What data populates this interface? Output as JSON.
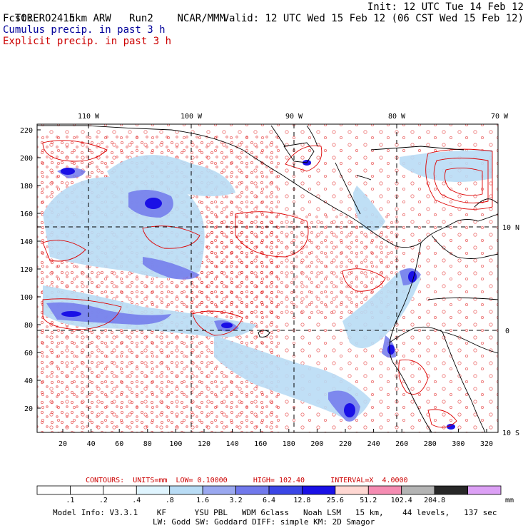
{
  "header": {
    "model": "TORERO",
    "grid": "15km ARW",
    "run": "Run2",
    "org": "NCAR/MMM",
    "init": "Init: 12 UTC Tue 14 Feb 12",
    "fcst_label": "Fcst:",
    "fcst_hours": "24 h",
    "valid": "Valid: 12 UTC Wed 15 Feb 12 (06 CST Wed 15 Feb 12)",
    "field1": "Cumulus precip. in past 3 h",
    "field2": "Explicit precip. in past 3 h",
    "field1_color": "#000099",
    "field2_color": "#cc0000"
  },
  "map": {
    "lon_labels": [
      "110 W",
      "100 W",
      "90 W",
      "80 W",
      "70 W"
    ],
    "lat_labels": [
      "10 N",
      "0",
      "10 S"
    ],
    "y_ticks": [
      "220",
      "200",
      "180",
      "160",
      "140",
      "120",
      "100",
      "80",
      "60",
      "40",
      "20"
    ],
    "x_ticks": [
      "20",
      "40",
      "60",
      "80",
      "100",
      "120",
      "140",
      "160",
      "180",
      "200",
      "220",
      "240",
      "260",
      "280",
      "300",
      "320"
    ]
  },
  "contours": {
    "label": "CONTOURS:",
    "units": "UNITS=mm",
    "low": "LOW= 0.10000",
    "high": "HIGH= 102.40",
    "interval": "INTERVAL=X  4.0000"
  },
  "colorbar": {
    "labels": [
      ".1",
      ".2",
      ".4",
      ".8",
      "1.6",
      "3.2",
      "6.4",
      "12.8",
      "25.6",
      "51.2",
      "102.4",
      "204.8"
    ],
    "unit": "mm",
    "colors": [
      "#ffffff",
      "#ffffff",
      "#ffffff",
      "#e0f5ff",
      "#b9dcf5",
      "#9aa8f0",
      "#7179ec",
      "#3b46e6",
      "#1a10e6",
      "#ffd7d2",
      "#f58cb2",
      "#b4b4b4",
      "#282828",
      "#dca0f5"
    ]
  },
  "footer": {
    "line1": "Model Info: V3.3.1    KF      YSU PBL   WDM 6class   Noah LSM   15 km,    44 levels,   137 sec",
    "line2": "LW: Godd SW: Goddard DIFF: simple KM: 2D Smagor"
  }
}
